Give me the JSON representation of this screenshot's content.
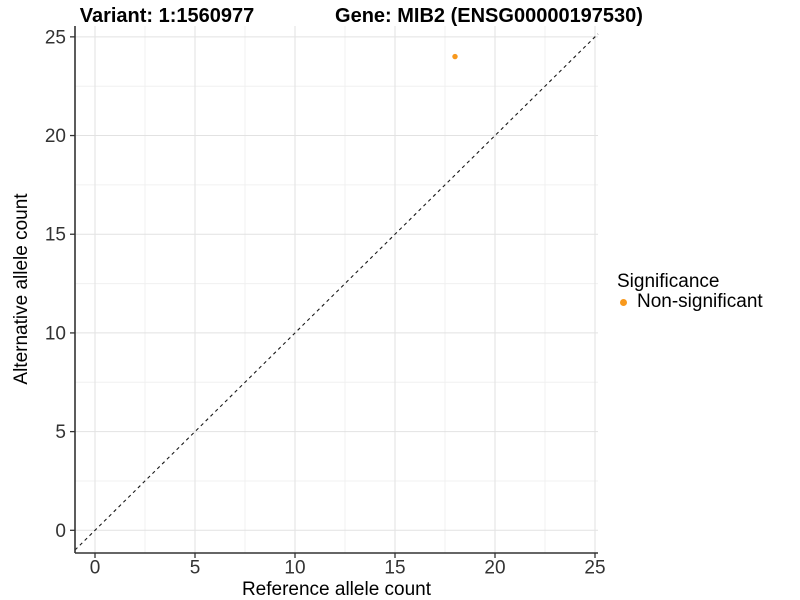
{
  "colors": {
    "background": "#FFFFFF",
    "grid_major": "#E2E2E2",
    "grid_minor": "#F0F0F0",
    "axis": "#333333",
    "text": "#000000",
    "tick_text": "#333333",
    "dashed_line": "#1A1A1A",
    "point": "#F8991D"
  },
  "chart_data": {
    "type": "scatter",
    "title_left": "Variant: 1:1560977",
    "title_right": "Gene: MIB2 (ENSG00000197530)",
    "xlabel": "Reference allele count",
    "ylabel": "Alternative allele count",
    "xlim": [
      -1.0,
      25.15
    ],
    "ylim": [
      -1.15,
      25.55
    ],
    "x_ticks": [
      0,
      5,
      10,
      15,
      20,
      25
    ],
    "y_ticks": [
      0,
      5,
      10,
      15,
      20,
      25
    ],
    "x_minor_ticks": [
      2.5,
      7.5,
      12.5,
      17.5,
      22.5
    ],
    "y_minor_ticks": [
      2.5,
      7.5,
      12.5,
      17.5,
      22.5
    ],
    "grid": true,
    "points": [
      {
        "x": 18,
        "y": 24,
        "series": "Non-significant",
        "color": "#F8991D"
      }
    ],
    "identity_line": {
      "style": "dashed",
      "from": [
        -1.0,
        -1.0
      ],
      "to": [
        25.15,
        25.15
      ],
      "color": "#1A1A1A"
    },
    "legend": {
      "title": "Significance",
      "position": "right",
      "items": [
        {
          "label": "Non-significant",
          "color": "#F8991D"
        }
      ]
    }
  }
}
